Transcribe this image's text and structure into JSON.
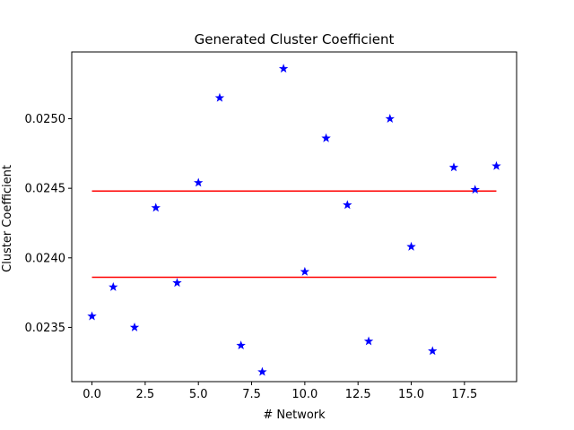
{
  "chart_data": {
    "type": "scatter",
    "title": "Generated Cluster Coefficient",
    "xlabel": "# Network",
    "ylabel": "Cluster Coefficient",
    "xlim": [
      -0.95,
      19.95
    ],
    "ylim": [
      0.02311,
      0.02548
    ],
    "x_ticks": [
      0.0,
      2.5,
      5.0,
      7.5,
      10.0,
      12.5,
      15.0,
      17.5
    ],
    "x_tick_labels": [
      "0.0",
      "2.5",
      "5.0",
      "7.5",
      "10.0",
      "12.5",
      "15.0",
      "17.5"
    ],
    "y_ticks": [
      0.0235,
      0.024,
      0.0245,
      0.025
    ],
    "y_tick_labels": [
      "0.0235",
      "0.0240",
      "0.0245",
      "0.0250"
    ],
    "grid": false,
    "legend": "none",
    "series": [
      {
        "marker": "star",
        "color": "#0000ff",
        "x": [
          0,
          1,
          2,
          3,
          4,
          5,
          6,
          7,
          8,
          9,
          10,
          11,
          12,
          13,
          14,
          15,
          16,
          17,
          18,
          19
        ],
        "y": [
          0.02358,
          0.02379,
          0.0235,
          0.02436,
          0.02382,
          0.02454,
          0.02515,
          0.02337,
          0.02318,
          0.02536,
          0.0239,
          0.02486,
          0.02438,
          0.0234,
          0.025,
          0.02408,
          0.02333,
          0.02465,
          0.02449,
          0.02466
        ]
      }
    ],
    "hlines": [
      {
        "y": 0.02448,
        "xmin": 0,
        "xmax": 19,
        "color": "#ff0000"
      },
      {
        "y": 0.02386,
        "xmin": 0,
        "xmax": 19,
        "color": "#ff0000"
      }
    ]
  }
}
